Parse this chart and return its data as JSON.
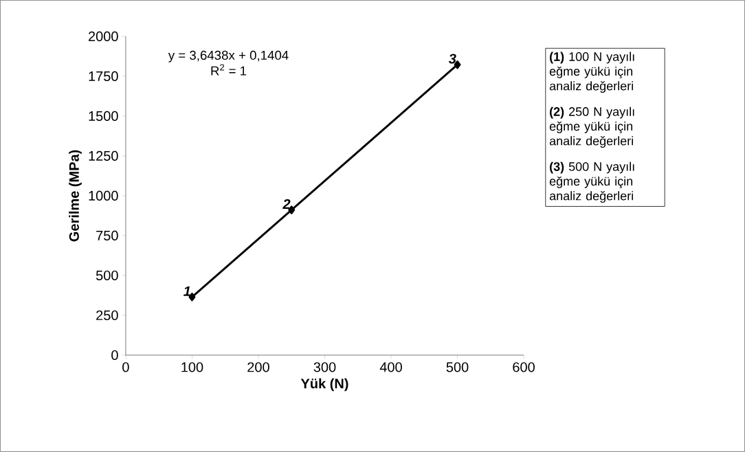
{
  "chart_data": {
    "type": "line",
    "xlabel": "Yük (N)",
    "ylabel": "Gerilme (MPa)",
    "x": [
      100,
      250,
      500
    ],
    "series": [
      {
        "color": "#000000",
        "values": [
          365,
          911,
          1822
        ]
      }
    ],
    "marker": "diamond",
    "line_style": "solid",
    "grid": false,
    "xlim": [
      0,
      600
    ],
    "xticks": [
      0,
      100,
      200,
      300,
      400,
      500,
      600
    ],
    "ylim": [
      0,
      2000
    ],
    "yticks": [
      0,
      250,
      500,
      750,
      1000,
      1250,
      1500,
      1750,
      2000
    ],
    "annotations": [
      "y = 3,6438x + 0,1404",
      "R$^{2}$ = 1",
      "**(1)** 100 N yayılı eğme yükü için analiz değerleri",
      "**(2)** 250 N yayılı eğme yükü için analiz değerleri",
      "**(3)** 500 N yayılı eğme yükü için analiz değerleri",
      {
        "text": "1",
        "x": 100,
        "y": 365
      },
      {
        "text": "2",
        "x": 250,
        "y": 911
      },
      {
        "text": "3",
        "x": 500,
        "y": 1822
      }
    ]
  }
}
